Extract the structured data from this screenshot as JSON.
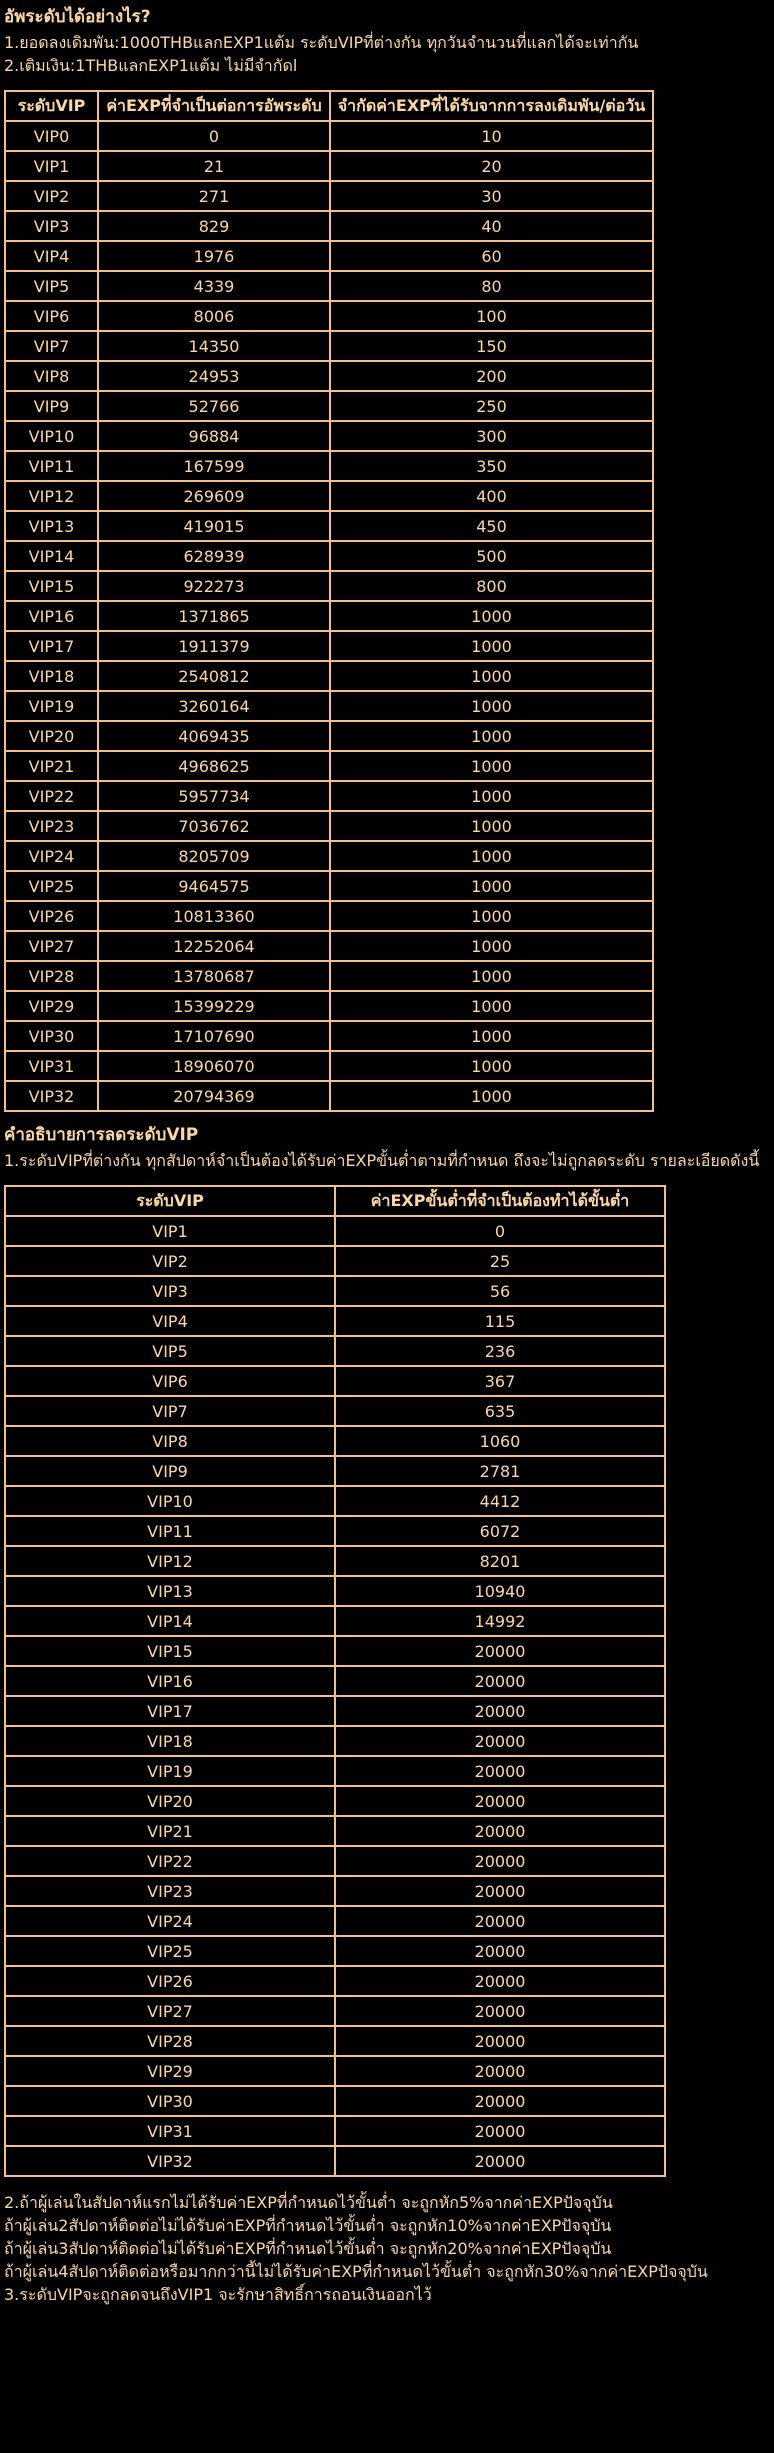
{
  "theme": {
    "background": "#000000",
    "text_color": "#fcd7a6",
    "table_border_color": "#f2bf8d"
  },
  "howto": {
    "heading": "อัพระดับได้อย่างไร?",
    "lines": [
      "1.ยอดลงเดิมพัน:1000THBแลกEXP1แต้ม ระดับVIPที่ต่างกัน ทุกวันจำนวนที่แลกได้จะเท่ากัน",
      "2.เติมเงิน:1THBแลกEXP1แต้ม ไม่มีจำกัดl"
    ]
  },
  "upgrade_table": {
    "headers": [
      "ระดับVIP",
      "ค่าEXPที่จำเป็นต่อการอัพระดับ",
      "จำกัดค่าEXPที่ได้รับจากการลงเดิมพัน/ต่อวัน"
    ],
    "rows": [
      [
        "VIP0",
        "0",
        "10"
      ],
      [
        "VIP1",
        "21",
        "20"
      ],
      [
        "VIP2",
        "271",
        "30"
      ],
      [
        "VIP3",
        "829",
        "40"
      ],
      [
        "VIP4",
        "1976",
        "60"
      ],
      [
        "VIP5",
        "4339",
        "80"
      ],
      [
        "VIP6",
        "8006",
        "100"
      ],
      [
        "VIP7",
        "14350",
        "150"
      ],
      [
        "VIP8",
        "24953",
        "200"
      ],
      [
        "VIP9",
        "52766",
        "250"
      ],
      [
        "VIP10",
        "96884",
        "300"
      ],
      [
        "VIP11",
        "167599",
        "350"
      ],
      [
        "VIP12",
        "269609",
        "400"
      ],
      [
        "VIP13",
        "419015",
        "450"
      ],
      [
        "VIP14",
        "628939",
        "500"
      ],
      [
        "VIP15",
        "922273",
        "800"
      ],
      [
        "VIP16",
        "1371865",
        "1000"
      ],
      [
        "VIP17",
        "1911379",
        "1000"
      ],
      [
        "VIP18",
        "2540812",
        "1000"
      ],
      [
        "VIP19",
        "3260164",
        "1000"
      ],
      [
        "VIP20",
        "4069435",
        "1000"
      ],
      [
        "VIP21",
        "4968625",
        "1000"
      ],
      [
        "VIP22",
        "5957734",
        "1000"
      ],
      [
        "VIP23",
        "7036762",
        "1000"
      ],
      [
        "VIP24",
        "8205709",
        "1000"
      ],
      [
        "VIP25",
        "9464575",
        "1000"
      ],
      [
        "VIP26",
        "10813360",
        "1000"
      ],
      [
        "VIP27",
        "12252064",
        "1000"
      ],
      [
        "VIP28",
        "13780687",
        "1000"
      ],
      [
        "VIP29",
        "15399229",
        "1000"
      ],
      [
        "VIP30",
        "17107690",
        "1000"
      ],
      [
        "VIP31",
        "18906070",
        "1000"
      ],
      [
        "VIP32",
        "20794369",
        "1000"
      ]
    ]
  },
  "demotion": {
    "heading": "คำอธิบายการลดระดับVIP",
    "intro": "1.ระดับVIPที่ต่างกัน ทุกสัปดาห์จำเป็นต้องได้รับค่าEXPขั้นต่ำตามที่กำหนด ถึงจะไม่ถูกลดระดับ รายละเอียดดังนี้",
    "table": {
      "headers": [
        "ระดับVIP",
        "ค่าEXPขั้นต่ำที่จำเป็นต้องทำได้ขั้นต่ำ"
      ],
      "rows": [
        [
          "VIP1",
          "0"
        ],
        [
          "VIP2",
          "25"
        ],
        [
          "VIP3",
          "56"
        ],
        [
          "VIP4",
          "115"
        ],
        [
          "VIP5",
          "236"
        ],
        [
          "VIP6",
          "367"
        ],
        [
          "VIP7",
          "635"
        ],
        [
          "VIP8",
          "1060"
        ],
        [
          "VIP9",
          "2781"
        ],
        [
          "VIP10",
          "4412"
        ],
        [
          "VIP11",
          "6072"
        ],
        [
          "VIP12",
          "8201"
        ],
        [
          "VIP13",
          "10940"
        ],
        [
          "VIP14",
          "14992"
        ],
        [
          "VIP15",
          "20000"
        ],
        [
          "VIP16",
          "20000"
        ],
        [
          "VIP17",
          "20000"
        ],
        [
          "VIP18",
          "20000"
        ],
        [
          "VIP19",
          "20000"
        ],
        [
          "VIP20",
          "20000"
        ],
        [
          "VIP21",
          "20000"
        ],
        [
          "VIP22",
          "20000"
        ],
        [
          "VIP23",
          "20000"
        ],
        [
          "VIP24",
          "20000"
        ],
        [
          "VIP25",
          "20000"
        ],
        [
          "VIP26",
          "20000"
        ],
        [
          "VIP27",
          "20000"
        ],
        [
          "VIP28",
          "20000"
        ],
        [
          "VIP29",
          "20000"
        ],
        [
          "VIP30",
          "20000"
        ],
        [
          "VIP31",
          "20000"
        ],
        [
          "VIP32",
          "20000"
        ]
      ]
    },
    "notes": [
      "2.ถ้าผู้เล่นในสัปดาห์แรกไม่ได้รับค่าEXPที่กำหนดไว้ขั้นต่ำ จะถูกหัก5%จากค่าEXPปัจจุบัน",
      "ถ้าผู้เล่น2สัปดาห์ติดต่อไม่ได้รับค่าEXPที่กำหนดไว้ขั้นต่ำ จะถูกหัก10%จากค่าEXPปัจจุบัน",
      "ถ้าผู้เล่น3สัปดาห์ติดต่อไม่ได้รับค่าEXPที่กำหนดไว้ขั้นต่ำ จะถูกหัก20%จากค่าEXPปัจจุบัน",
      "ถ้าผู้เล่น4สัปดาห์ติดต่อหรือมากกว่านี้ไม่ได้รับค่าEXPที่กำหนดไว้ขั้นต่ำ จะถูกหัก30%จากค่าEXPปัจจุบัน",
      "3.ระดับVIPจะถูกลดจนถึงVIP1 จะรักษาสิทธิ์การถอนเงินออกไว้"
    ]
  }
}
